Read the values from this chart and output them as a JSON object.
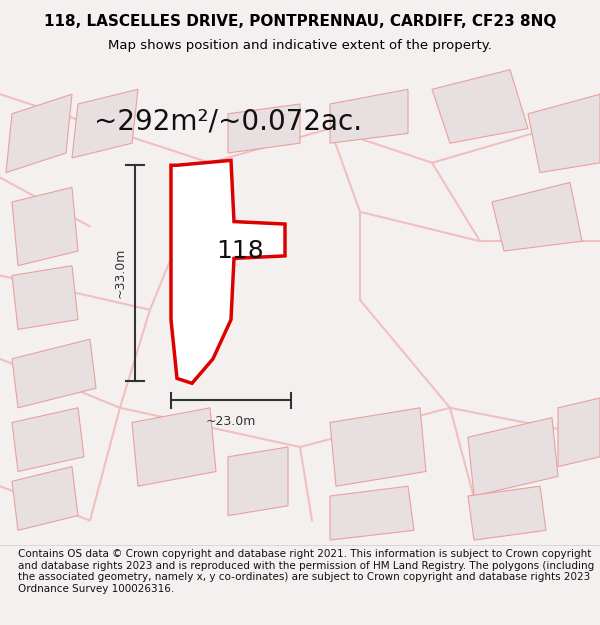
{
  "title_line1": "118, LASCELLES DRIVE, PONTPRENNAU, CARDIFF, CF23 8NQ",
  "title_line2": "Map shows position and indicative extent of the property.",
  "area_text": "~292m²/~0.072ac.",
  "label_118": "118",
  "dim_vertical": "~33.0m",
  "dim_horizontal": "~23.0m",
  "footer_text": "Contains OS data © Crown copyright and database right 2021. This information is subject to Crown copyright and database rights 2023 and is reproduced with the permission of HM Land Registry. The polygons (including the associated geometry, namely x, y co-ordinates) are subject to Crown copyright and database rights 2023 Ordnance Survey 100026316.",
  "bg_color": "#f5f0f0",
  "map_bg_color": "#f9f5f5",
  "plot_fill": "#ffffff",
  "plot_edge_color": "#dd0000",
  "plot_edge_width": 2.5,
  "neighbor_fill": "#e8e0e0",
  "neighbor_edge": "#e8a0a0",
  "road_color": "#f0c0c0",
  "dim_color": "#333333",
  "title_fontsize": 11,
  "subtitle_fontsize": 9.5,
  "area_fontsize": 20,
  "label_fontsize": 18,
  "dim_fontsize": 9,
  "footer_fontsize": 7.5
}
